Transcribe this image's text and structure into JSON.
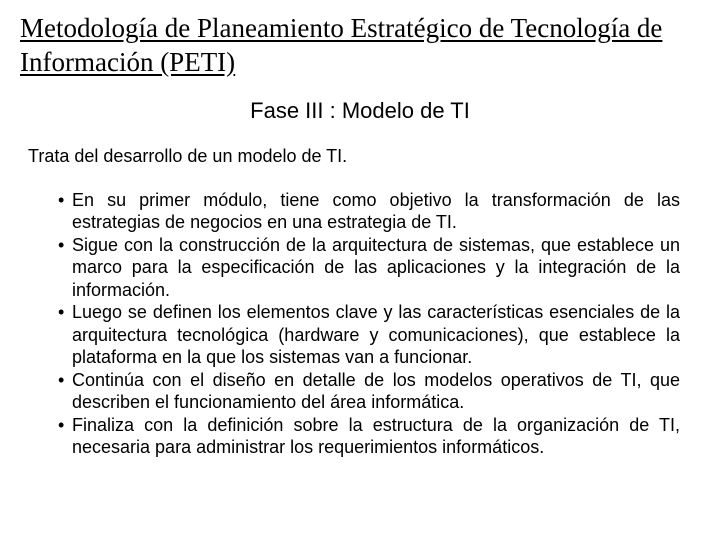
{
  "title": "Metodología de Planeamiento Estratégico de Tecnología de  Información (PETI)",
  "subtitle": "Fase III   : Modelo de TI",
  "intro": "Trata del desarrollo de un modelo de TI.",
  "bullets": [
    "En su primer módulo, tiene como objetivo la  transformación  de  las estrategias  de  negocios  en  una  estrategia  de  TI.",
    "Sigue  con  la  construcción  de  la  arquitectura  de  sistemas,  que establece  un  marco  para  la  especificación  de las  aplicaciones  y la  integración  de  la información.",
    "Luego  se  definen  los  elementos  clave  y  las características esenciales  de  la  arquitectura  tecnológica (hardware  y comunicaciones),   que establece  la  plataforma  en  la  que  los sistemas  van  a  funcionar.",
    "Continúa  con  el  diseño  en detalle  de  los  modelos  operativos  de TI,  que  describen  el  funcionamiento  del  área informática.",
    "Finaliza  con  la  definición  sobre  la  estructura  de  la organización  de  TI,  necesaria  para administrar los requerimientos informáticos."
  ],
  "colors": {
    "background": "#ffffff",
    "text": "#000000"
  },
  "typography": {
    "title_family": "Times New Roman",
    "body_family": "Arial",
    "title_size_pt": 20,
    "subtitle_size_pt": 16,
    "body_size_pt": 13
  }
}
